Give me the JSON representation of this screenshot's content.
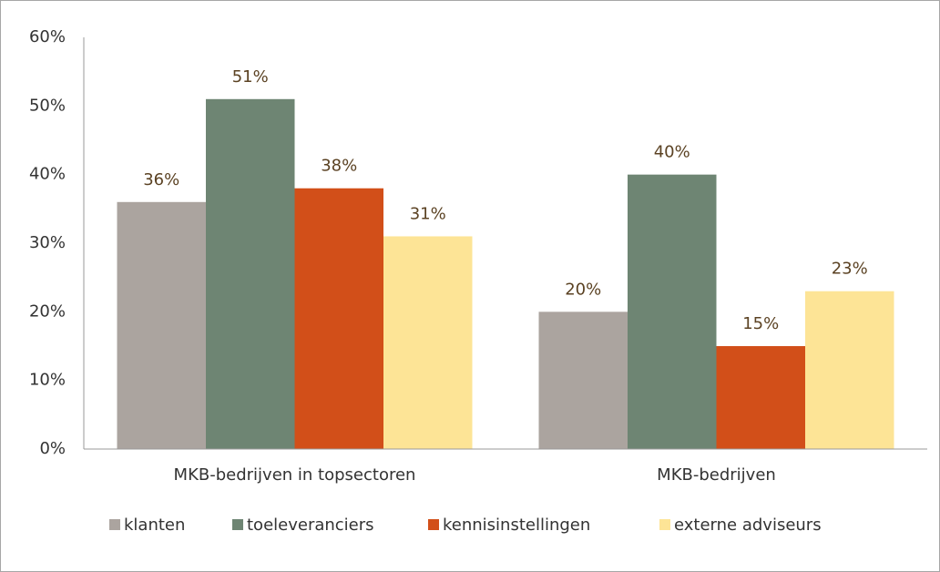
{
  "chart_data": {
    "type": "bar",
    "categories": [
      "MKB-bedrijven in topsectoren",
      "MKB-bedrijven"
    ],
    "series": [
      {
        "name": "klanten",
        "color": "#aba49f",
        "values": [
          36,
          20
        ],
        "value_labels": [
          "36%",
          "20%"
        ]
      },
      {
        "name": "toeleveranciers",
        "color": "#6e8573",
        "values": [
          51,
          40
        ],
        "value_labels": [
          "51%",
          "40%"
        ]
      },
      {
        "name": "kennisinstellingen",
        "color": "#d24f19",
        "values": [
          38,
          15
        ],
        "value_labels": [
          "38%",
          "15%"
        ]
      },
      {
        "name": "externe adviseurs",
        "color": "#fde496",
        "values": [
          31,
          23
        ],
        "value_labels": [
          "31%",
          "23%"
        ]
      }
    ],
    "ylim": [
      0,
      60
    ],
    "yticks": [
      {
        "value": 0,
        "label": "0%"
      },
      {
        "value": 10,
        "label": "10%"
      },
      {
        "value": 20,
        "label": "20%"
      },
      {
        "value": 30,
        "label": "30%"
      },
      {
        "value": 40,
        "label": "40%"
      },
      {
        "value": 50,
        "label": "50%"
      },
      {
        "value": 60,
        "label": "60%"
      }
    ],
    "legend": "bottom"
  }
}
